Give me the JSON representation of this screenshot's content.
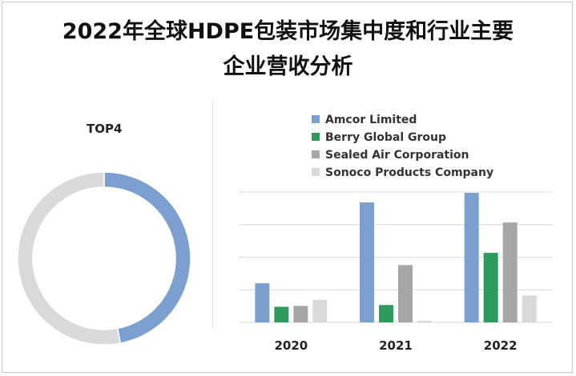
{
  "title": {
    "line1": "2022年全球HDPE包装市场集中度和行业主要",
    "line2": "企业营收分析"
  },
  "colors": {
    "amcor": "#7b9fcf",
    "berry": "#2e9a5e",
    "sealed": "#a6a6a6",
    "sonoco": "#d9d9d9",
    "grid": "#d9d9d9"
  },
  "chart_data": [
    {
      "type": "pie",
      "variant": "donut",
      "label": "TOP4",
      "slices": [
        {
          "value": 47,
          "color": "#7b9fcf"
        },
        {
          "value": 53,
          "color": "#d9d9d9"
        }
      ]
    },
    {
      "type": "bar",
      "categories": [
        "2020",
        "2021",
        "2022"
      ],
      "legend_position": "top",
      "grid": true,
      "ylim": [
        0,
        150
      ],
      "series": [
        {
          "name": "Amcor Limited",
          "color": "#7b9fcf",
          "values": [
            45,
            138,
            149
          ]
        },
        {
          "name": "Berry Global Group",
          "color": "#2e9a5e",
          "values": [
            18,
            20,
            80
          ]
        },
        {
          "name": "Sealed Air Corporation",
          "color": "#a6a6a6",
          "values": [
            19,
            66,
            115
          ]
        },
        {
          "name": "Sonoco Products Company",
          "color": "#d9d9d9",
          "values": [
            26,
            2,
            31
          ]
        }
      ]
    }
  ]
}
